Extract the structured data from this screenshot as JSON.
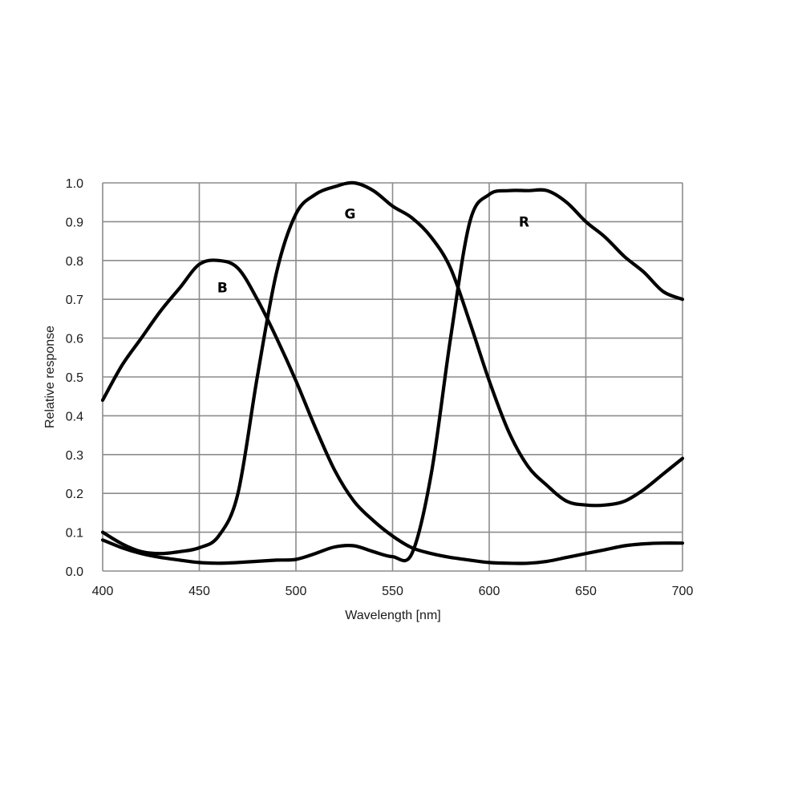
{
  "chart_data": {
    "type": "line",
    "title": "",
    "xlabel": "Wavelength [nm]",
    "ylabel": "Relative response",
    "xlim": [
      400,
      700
    ],
    "ylim": [
      0.0,
      1.0
    ],
    "xticks": [
      "400",
      "450",
      "500",
      "550",
      "600",
      "650",
      "700"
    ],
    "yticks": [
      "0.0",
      "0.1",
      "0.2",
      "0.3",
      "0.4",
      "0.5",
      "0.6",
      "0.7",
      "0.8",
      "0.9",
      "1.0"
    ],
    "grid": true,
    "legend": "inline labels",
    "x": [
      400,
      410,
      420,
      430,
      440,
      450,
      460,
      470,
      480,
      490,
      500,
      510,
      520,
      530,
      540,
      550,
      560,
      570,
      580,
      590,
      600,
      610,
      620,
      630,
      640,
      650,
      660,
      670,
      680,
      690,
      700
    ],
    "series": [
      {
        "name": "B",
        "label_position": [
          462,
          0.73
        ],
        "values": [
          0.44,
          0.53,
          0.6,
          0.67,
          0.73,
          0.79,
          0.8,
          0.78,
          0.7,
          0.6,
          0.49,
          0.37,
          0.26,
          0.18,
          0.13,
          0.09,
          0.06,
          0.045,
          0.035,
          0.028,
          0.022,
          0.02,
          0.02,
          0.025,
          0.035,
          0.045,
          0.055,
          0.065,
          0.07,
          0.072,
          0.072
        ]
      },
      {
        "name": "G",
        "label_position": [
          528,
          0.92
        ],
        "values": [
          0.1,
          0.07,
          0.05,
          0.045,
          0.05,
          0.06,
          0.09,
          0.2,
          0.5,
          0.77,
          0.92,
          0.97,
          0.99,
          1.0,
          0.98,
          0.94,
          0.91,
          0.86,
          0.78,
          0.64,
          0.49,
          0.36,
          0.27,
          0.22,
          0.18,
          0.17,
          0.17,
          0.18,
          0.21,
          0.25,
          0.29
        ]
      },
      {
        "name": "R",
        "label_position": [
          618,
          0.9
        ],
        "values": [
          0.08,
          0.06,
          0.045,
          0.035,
          0.028,
          0.022,
          0.02,
          0.022,
          0.025,
          0.028,
          0.03,
          0.045,
          0.062,
          0.065,
          0.05,
          0.037,
          0.045,
          0.25,
          0.6,
          0.9,
          0.97,
          0.98,
          0.98,
          0.98,
          0.95,
          0.9,
          0.86,
          0.81,
          0.77,
          0.72,
          0.7
        ]
      }
    ]
  },
  "labels": {
    "xlabel": "Wavelength [nm]",
    "ylabel": "Relative response"
  },
  "style": {
    "line_color": "#000000",
    "grid_color": "#8c8c8c",
    "background": "#ffffff"
  }
}
